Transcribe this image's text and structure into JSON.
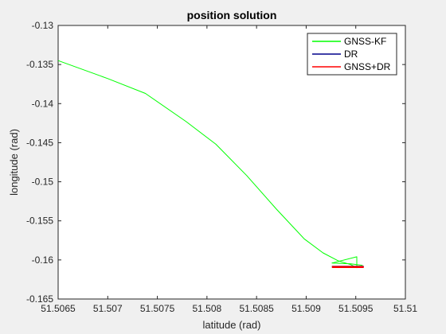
{
  "chart_data": {
    "type": "line",
    "title": "position solution",
    "xlabel": "latitude (rad)",
    "ylabel": "longitude (rad)",
    "xlim": [
      51.5065,
      51.51
    ],
    "ylim": [
      -0.165,
      -0.13
    ],
    "xticks": [
      51.5065,
      51.507,
      51.5075,
      51.508,
      51.5085,
      51.509,
      51.5095,
      51.51
    ],
    "xtick_labels": [
      "51.5065",
      "51.507",
      "51.5075",
      "51.508",
      "51.5085",
      "51.509",
      "51.5095",
      "51.51"
    ],
    "yticks": [
      -0.165,
      -0.16,
      -0.155,
      -0.15,
      -0.145,
      -0.14,
      -0.135,
      -0.13
    ],
    "ytick_labels": [
      "-0.165",
      "-0.16",
      "-0.155",
      "-0.15",
      "-0.145",
      "-0.14",
      "-0.135",
      "-0.13"
    ],
    "grid": false,
    "legend_position": "top-right",
    "series": [
      {
        "name": "GNSS-KF",
        "color": "#00ff00",
        "x": [
          51.5065,
          51.507,
          51.50738,
          51.50779,
          51.50809,
          51.5084,
          51.5087,
          51.50898,
          51.50917,
          51.50932,
          51.50945,
          51.50951,
          51.50951,
          51.50926,
          51.50945,
          51.50957
        ],
        "y": [
          -0.1345,
          -0.1368,
          -0.1387,
          -0.1423,
          -0.1452,
          -0.1492,
          -0.1535,
          -0.1573,
          -0.1591,
          -0.1601,
          -0.1606,
          -0.161,
          -0.1596,
          -0.1604,
          -0.1605,
          -0.1607
        ]
      },
      {
        "name": "DR",
        "color": "#00008b",
        "x": [
          51.50926,
          51.50958
        ],
        "y": [
          -0.16085,
          -0.16085
        ]
      },
      {
        "name": "GNSS+DR",
        "color": "#ff0000",
        "x": [
          51.50926,
          51.50958
        ],
        "y": [
          -0.1609,
          -0.1609
        ]
      }
    ]
  }
}
